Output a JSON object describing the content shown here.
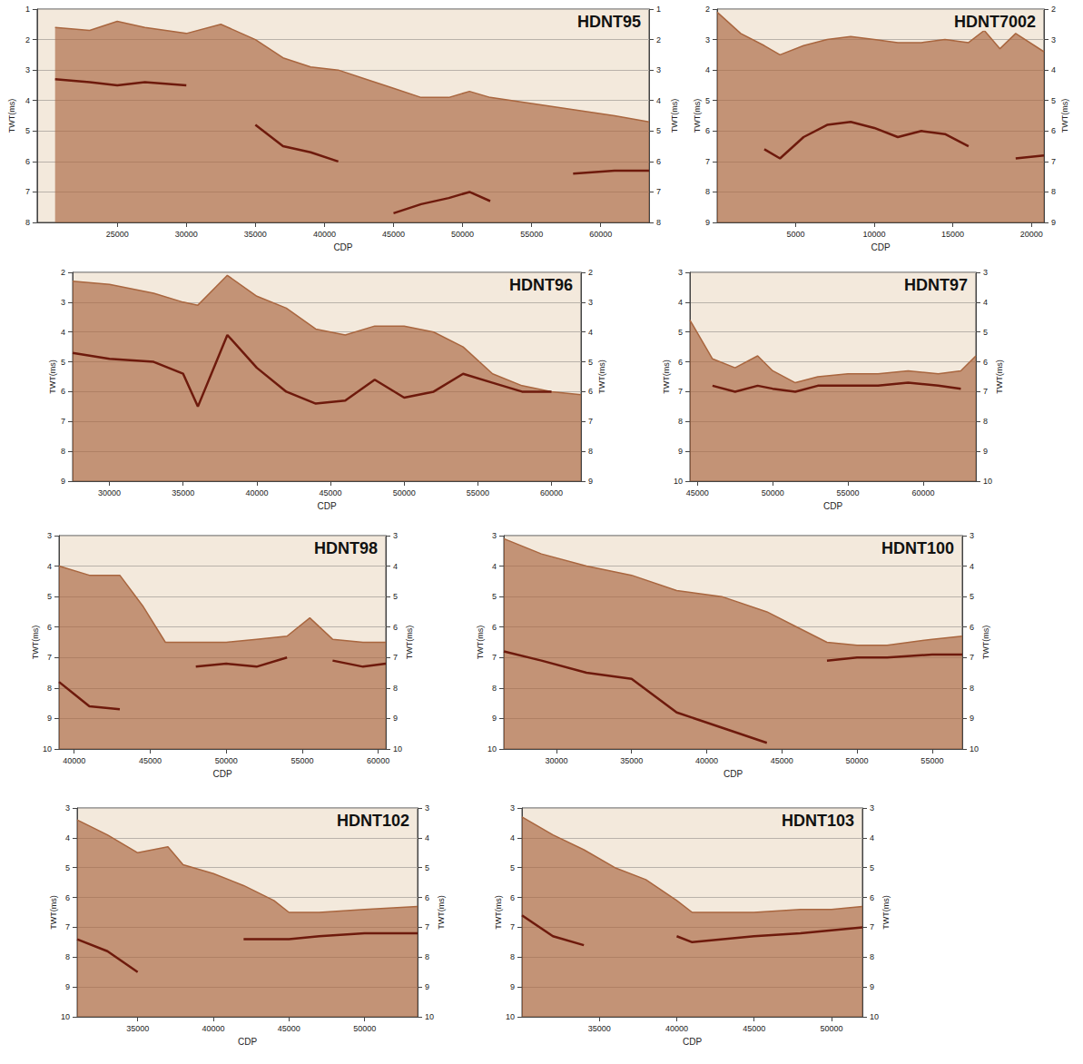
{
  "chart_data": [
    {
      "type": "line",
      "title": "HDNT95",
      "x_label": "CDP",
      "y_label": "TWT(ms)",
      "grid": true,
      "xlim": [
        19200,
        63500
      ],
      "xticks": [
        25000,
        30000,
        35000,
        40000,
        45000,
        50000,
        55000,
        60000
      ],
      "ylim": [
        1,
        8
      ],
      "yticks": [
        1,
        2,
        3,
        4,
        5,
        6,
        7,
        8
      ],
      "x": [
        20500,
        23000,
        25000,
        27000,
        30000,
        32500,
        35000,
        37000,
        39000,
        41000,
        43000,
        45000,
        47000,
        49000,
        50500,
        52000,
        55000,
        58000,
        61000,
        63500
      ],
      "series": [
        {
          "type": "area",
          "color": "#a9663f",
          "values": [
            1.6,
            1.7,
            1.4,
            1.6,
            1.8,
            1.5,
            2.0,
            2.6,
            2.9,
            3.0,
            3.3,
            3.6,
            3.9,
            3.9,
            3.7,
            3.9,
            4.1,
            4.3,
            4.5,
            4.7
          ]
        },
        {
          "type": "line",
          "color": "#6e1a0c",
          "values": [
            3.3,
            3.4,
            3.5,
            3.4,
            3.5,
            null,
            4.8,
            5.5,
            5.7,
            6.0,
            null,
            7.7,
            7.4,
            7.2,
            7.0,
            7.3,
            null,
            6.4,
            6.3,
            6.3
          ]
        }
      ]
    },
    {
      "type": "line",
      "title": "HDNT7002",
      "x_label": "CDP",
      "y_label": "TWT(ms)",
      "grid": true,
      "xlim": [
        0,
        20800
      ],
      "xticks": [
        5000,
        10000,
        15000,
        20000
      ],
      "ylim": [
        2,
        9
      ],
      "yticks": [
        2,
        3,
        4,
        5,
        6,
        7,
        8,
        9
      ],
      "x": [
        0,
        1500,
        3000,
        4000,
        5500,
        7000,
        8500,
        10000,
        11500,
        13000,
        14500,
        16000,
        17000,
        18000,
        19000,
        20800
      ],
      "series": [
        {
          "type": "area",
          "color": "#a9663f",
          "values": [
            2.1,
            2.8,
            3.2,
            3.5,
            3.2,
            3.0,
            2.9,
            3.0,
            3.1,
            3.1,
            3.0,
            3.1,
            2.7,
            3.3,
            2.8,
            3.4
          ]
        },
        {
          "type": "line",
          "color": "#6e1a0c",
          "values": [
            null,
            null,
            6.6,
            6.9,
            6.2,
            5.8,
            5.7,
            5.9,
            6.2,
            6.0,
            6.1,
            6.5,
            null,
            null,
            6.9,
            6.8
          ]
        }
      ]
    },
    {
      "type": "line",
      "title": "HDNT96",
      "x_label": "CDP",
      "y_label": "TWT(ms)",
      "grid": true,
      "xlim": [
        27500,
        62000
      ],
      "xticks": [
        30000,
        35000,
        40000,
        45000,
        50000,
        55000,
        60000
      ],
      "ylim": [
        2,
        9
      ],
      "yticks": [
        2,
        3,
        4,
        5,
        6,
        7,
        8,
        9
      ],
      "x": [
        27500,
        30000,
        33000,
        35000,
        36000,
        38000,
        40000,
        42000,
        44000,
        46000,
        48000,
        50000,
        52000,
        54000,
        56000,
        58000,
        60000,
        62000
      ],
      "series": [
        {
          "type": "area",
          "color": "#a9663f",
          "values": [
            2.3,
            2.4,
            2.7,
            3.0,
            3.1,
            2.1,
            2.8,
            3.2,
            3.9,
            4.1,
            3.8,
            3.8,
            4.0,
            4.5,
            5.4,
            5.8,
            6.0,
            6.1
          ]
        },
        {
          "type": "line",
          "color": "#6e1a0c",
          "values": [
            4.7,
            4.9,
            5.0,
            5.4,
            6.5,
            4.1,
            5.2,
            6.0,
            6.4,
            6.3,
            5.6,
            6.2,
            6.0,
            5.4,
            5.7,
            6.0,
            6.0,
            null
          ]
        }
      ]
    },
    {
      "type": "line",
      "title": "HDNT97",
      "x_label": "CDP",
      "y_label": "TWT(ms)",
      "grid": true,
      "xlim": [
        44500,
        63500
      ],
      "xticks": [
        45000,
        50000,
        55000,
        60000
      ],
      "ylim": [
        3,
        10
      ],
      "yticks": [
        3,
        4,
        5,
        6,
        7,
        8,
        9,
        10
      ],
      "x": [
        44500,
        46000,
        47500,
        49000,
        50000,
        51500,
        53000,
        55000,
        57000,
        59000,
        61000,
        62500,
        63500
      ],
      "series": [
        {
          "type": "area",
          "color": "#a9663f",
          "values": [
            4.6,
            5.9,
            6.2,
            5.8,
            6.3,
            6.7,
            6.5,
            6.4,
            6.4,
            6.3,
            6.4,
            6.3,
            5.8
          ]
        },
        {
          "type": "line",
          "color": "#6e1a0c",
          "values": [
            null,
            6.8,
            7.0,
            6.8,
            6.9,
            7.0,
            6.8,
            6.8,
            6.8,
            6.7,
            6.8,
            6.9,
            null
          ]
        }
      ]
    },
    {
      "type": "line",
      "title": "HDNT98",
      "x_label": "CDP",
      "y_label": "TWT(ms)",
      "grid": true,
      "xlim": [
        39000,
        60500
      ],
      "xticks": [
        40000,
        45000,
        50000,
        55000,
        60000
      ],
      "ylim": [
        3,
        10
      ],
      "yticks": [
        3,
        4,
        5,
        6,
        7,
        8,
        9,
        10
      ],
      "x": [
        39000,
        41000,
        43000,
        44500,
        46000,
        48000,
        50000,
        52000,
        54000,
        55500,
        57000,
        59000,
        60500
      ],
      "series": [
        {
          "type": "area",
          "color": "#a9663f",
          "values": [
            4.0,
            4.3,
            4.3,
            5.3,
            6.5,
            6.5,
            6.5,
            6.4,
            6.3,
            5.7,
            6.4,
            6.5,
            6.5
          ]
        },
        {
          "type": "line",
          "color": "#6e1a0c",
          "values": [
            7.8,
            8.6,
            8.7,
            null,
            null,
            7.3,
            7.2,
            7.3,
            7.0,
            null,
            7.1,
            7.3,
            7.2
          ]
        }
      ]
    },
    {
      "type": "line",
      "title": "HDNT100",
      "x_label": "CDP",
      "y_label": "TWT(ms)",
      "grid": true,
      "xlim": [
        26500,
        57000
      ],
      "xticks": [
        30000,
        35000,
        40000,
        45000,
        50000,
        55000
      ],
      "ylim": [
        3,
        10
      ],
      "yticks": [
        3,
        4,
        5,
        6,
        7,
        8,
        9,
        10
      ],
      "x": [
        26500,
        29000,
        32000,
        35000,
        38000,
        41000,
        44000,
        46000,
        48000,
        50000,
        52000,
        55000,
        57000
      ],
      "series": [
        {
          "type": "area",
          "color": "#a9663f",
          "values": [
            3.1,
            3.6,
            4.0,
            4.3,
            4.8,
            5.0,
            5.5,
            6.0,
            6.5,
            6.6,
            6.6,
            6.4,
            6.3
          ]
        },
        {
          "type": "line",
          "color": "#6e1a0c",
          "values": [
            6.8,
            7.1,
            7.5,
            7.7,
            8.8,
            9.3,
            9.8,
            null,
            7.1,
            7.0,
            7.0,
            6.9,
            6.9
          ]
        }
      ]
    },
    {
      "type": "line",
      "title": "HDNT102",
      "x_label": "CDP",
      "y_label": "TWT(ms)",
      "grid": true,
      "xlim": [
        31000,
        53500
      ],
      "xticks": [
        35000,
        40000,
        45000,
        50000
      ],
      "ylim": [
        3,
        10
      ],
      "yticks": [
        3,
        4,
        5,
        6,
        7,
        8,
        9,
        10
      ],
      "x": [
        31000,
        33000,
        35000,
        37000,
        38000,
        40000,
        42000,
        44000,
        45000,
        47000,
        50000,
        53500
      ],
      "series": [
        {
          "type": "area",
          "color": "#a9663f",
          "values": [
            3.4,
            3.9,
            4.5,
            4.3,
            4.9,
            5.2,
            5.6,
            6.1,
            6.5,
            6.5,
            6.4,
            6.3
          ]
        },
        {
          "type": "line",
          "color": "#6e1a0c",
          "values": [
            7.4,
            7.8,
            8.5,
            null,
            null,
            null,
            7.4,
            7.4,
            7.4,
            7.3,
            7.2,
            7.2
          ]
        }
      ]
    },
    {
      "type": "line",
      "title": "HDNT103",
      "x_label": "CDP",
      "y_label": "TWT(ms)",
      "grid": true,
      "xlim": [
        30000,
        52000
      ],
      "xticks": [
        35000,
        40000,
        45000,
        50000
      ],
      "ylim": [
        3,
        10
      ],
      "yticks": [
        3,
        4,
        5,
        6,
        7,
        8,
        9,
        10
      ],
      "x": [
        30000,
        32000,
        34000,
        36000,
        38000,
        40000,
        41000,
        43000,
        45000,
        48000,
        50000,
        52000
      ],
      "series": [
        {
          "type": "area",
          "color": "#a9663f",
          "values": [
            3.3,
            3.9,
            4.4,
            5.0,
            5.4,
            6.1,
            6.5,
            6.5,
            6.5,
            6.4,
            6.4,
            6.3
          ]
        },
        {
          "type": "line",
          "color": "#6e1a0c",
          "values": [
            6.6,
            7.3,
            7.6,
            null,
            null,
            7.3,
            7.5,
            7.4,
            7.3,
            7.2,
            7.1,
            7.0
          ]
        }
      ]
    }
  ]
}
